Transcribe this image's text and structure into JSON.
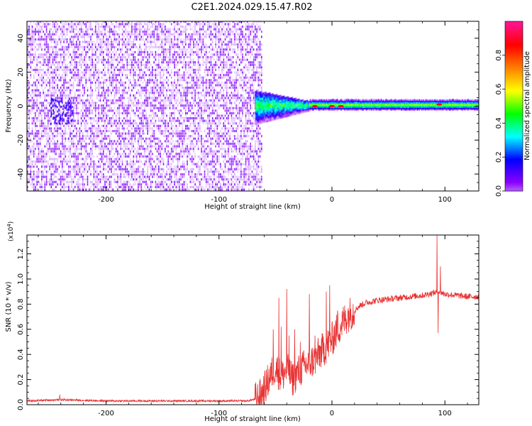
{
  "title": "C2E1.2024.029.15.47.R02",
  "colors": {
    "snr_line": "#e83232",
    "background": "#ffffff",
    "axes": "#000000"
  },
  "chart_data": [
    {
      "type": "heatmap",
      "xlabel": "Height of straight line (km)",
      "ylabel": "Frequency (Hz)",
      "xlim": [
        -270,
        130
      ],
      "ylim": [
        -50,
        50
      ],
      "x_ticks": [
        -200,
        -100,
        0,
        100
      ],
      "y_ticks": [
        -40,
        -20,
        0,
        20,
        40
      ],
      "x_tick_labels": [
        "-200",
        "-100",
        "0",
        "100"
      ],
      "y_tick_labels": [
        "-40",
        "-20",
        "0",
        "20",
        "40"
      ],
      "colorbar": {
        "label": "Normalized spectral amplitude",
        "range": [
          0.0,
          1.0
        ],
        "ticks": [
          0.0,
          0.2,
          0.4,
          0.6,
          0.8
        ],
        "tick_labels": [
          "0.0",
          "0.2",
          "0.4",
          "0.6",
          "0.8"
        ],
        "colormap": [
          "#ffffff",
          "#8b00ff",
          "#0000ff",
          "#00ffff",
          "#00ff00",
          "#ffff00",
          "#ff8000",
          "#ff0000",
          "#ff1493"
        ]
      },
      "regions": [
        {
          "name": "noise",
          "x_range": [
            -270,
            -62
          ],
          "f_range": [
            -50,
            50
          ],
          "level": 0.15
        },
        {
          "name": "onset",
          "x_range": [
            -68,
            -20
          ],
          "f_range": [
            -12,
            10
          ],
          "level": 0.35
        },
        {
          "name": "carrier",
          "x_range": [
            -20,
            130
          ],
          "f_center": 0.5,
          "f_halfwidth": 2.5,
          "level": 0.5
        },
        {
          "name": "hotspots",
          "x": [
            -15,
            0,
            8,
            95
          ],
          "f": [
            0,
            0,
            0,
            1
          ],
          "level": 0.9
        }
      ]
    },
    {
      "type": "line",
      "xlabel": "Height of straight line (km)",
      "ylabel": "SNR (10 * v/v)",
      "y_exponent_label": "(x10",
      "y_exponent_value": "4",
      "y_exponent_close": ")",
      "xlim": [
        -270,
        130
      ],
      "ylim": [
        0.0,
        1.35
      ],
      "x_ticks": [
        -200,
        -100,
        0,
        100
      ],
      "y_ticks": [
        0.0,
        0.2,
        0.4,
        0.6,
        0.8,
        1.0,
        1.2
      ],
      "x_tick_labels": [
        "-200",
        "-100",
        "0",
        "100"
      ],
      "y_tick_labels": [
        "0.0",
        "0.2",
        "0.4",
        "0.6",
        "0.8",
        "1.0",
        "1.2"
      ],
      "trend": {
        "x": [
          -270,
          -240,
          -200,
          -150,
          -100,
          -75,
          -65,
          -60,
          -55,
          -50,
          -45,
          -40,
          -35,
          -30,
          -25,
          -20,
          -15,
          -10,
          -5,
          0,
          5,
          10,
          15,
          20,
          25,
          30,
          40,
          50,
          60,
          70,
          80,
          90,
          95,
          100,
          110,
          120,
          130
        ],
        "y": [
          0.03,
          0.04,
          0.03,
          0.03,
          0.03,
          0.03,
          0.05,
          0.12,
          0.22,
          0.3,
          0.22,
          0.28,
          0.2,
          0.26,
          0.3,
          0.33,
          0.36,
          0.42,
          0.46,
          0.52,
          0.6,
          0.66,
          0.72,
          0.75,
          0.79,
          0.81,
          0.83,
          0.84,
          0.85,
          0.86,
          0.87,
          0.89,
          0.9,
          0.88,
          0.87,
          0.86,
          0.86
        ]
      },
      "spikes": {
        "x": [
          -241,
          -52,
          -47,
          -45,
          -40,
          -38,
          -33,
          -28,
          -20,
          -15,
          -5,
          -2,
          5,
          93,
          94,
          96
        ],
        "y": [
          0.08,
          0.6,
          0.85,
          0.62,
          0.92,
          0.55,
          0.6,
          0.5,
          0.88,
          0.55,
          0.9,
          0.95,
          0.75,
          1.35,
          0.57,
          1.1
        ]
      }
    }
  ]
}
